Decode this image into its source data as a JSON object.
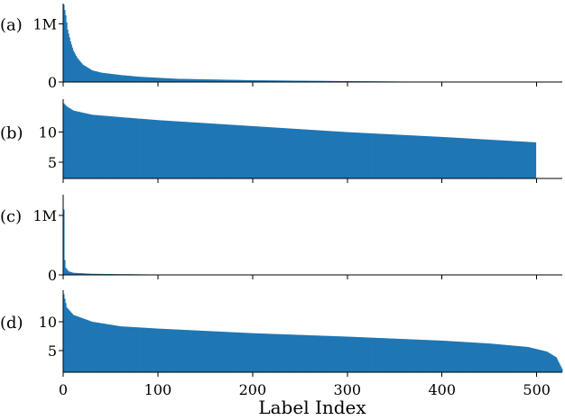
{
  "chart_data": {
    "type": "bar",
    "xlabel": "Label Index",
    "xticks": [
      0,
      100,
      200,
      300,
      400,
      500
    ],
    "xlim": [
      0,
      527
    ],
    "bar_color": "#1f77b4",
    "panels": [
      {
        "id": "a",
        "label": "(a)",
        "n_bars": 382,
        "ylim": [
          0,
          1350000
        ],
        "yticks": [
          {
            "value": 0,
            "label": "0"
          },
          {
            "value": 1000000,
            "label": "1M"
          }
        ],
        "values": [
          {
            "x": 0,
            "y": 1330000
          },
          {
            "x": 2,
            "y": 1150000
          },
          {
            "x": 4,
            "y": 900000
          },
          {
            "x": 7,
            "y": 700000
          },
          {
            "x": 10,
            "y": 540000
          },
          {
            "x": 14,
            "y": 420000
          },
          {
            "x": 20,
            "y": 300000
          },
          {
            "x": 30,
            "y": 200000
          },
          {
            "x": 40,
            "y": 160000
          },
          {
            "x": 60,
            "y": 120000
          },
          {
            "x": 80,
            "y": 90000
          },
          {
            "x": 120,
            "y": 55000
          },
          {
            "x": 200,
            "y": 30000
          },
          {
            "x": 300,
            "y": 15000
          },
          {
            "x": 382,
            "y": 5000
          }
        ]
      },
      {
        "id": "b",
        "label": "(b)",
        "n_bars": 499,
        "ylim": [
          2.3,
          15.5
        ],
        "yticks": [
          {
            "value": 5,
            "label": "5"
          },
          {
            "value": 10,
            "label": "10"
          }
        ],
        "values": [
          {
            "x": 0,
            "y": 14.8
          },
          {
            "x": 3,
            "y": 14.3
          },
          {
            "x": 10,
            "y": 13.6
          },
          {
            "x": 30,
            "y": 12.9
          },
          {
            "x": 60,
            "y": 12.5
          },
          {
            "x": 100,
            "y": 12.0
          },
          {
            "x": 200,
            "y": 11.0
          },
          {
            "x": 300,
            "y": 10.0
          },
          {
            "x": 400,
            "y": 9.2
          },
          {
            "x": 499,
            "y": 8.3
          }
        ]
      },
      {
        "id": "c",
        "label": "(c)",
        "n_bars": 88,
        "ylim": [
          0,
          1350000
        ],
        "yticks": [
          {
            "value": 0,
            "label": "0"
          },
          {
            "value": 1000000,
            "label": "1M"
          }
        ],
        "values": [
          {
            "x": 0,
            "y": 1100000
          },
          {
            "x": 1,
            "y": 250000
          },
          {
            "x": 2,
            "y": 120000
          },
          {
            "x": 5,
            "y": 60000
          },
          {
            "x": 10,
            "y": 35000
          },
          {
            "x": 30,
            "y": 18000
          },
          {
            "x": 60,
            "y": 12000
          },
          {
            "x": 88,
            "y": 8000
          }
        ]
      },
      {
        "id": "d",
        "label": "(d)",
        "n_bars": 527,
        "ylim": [
          1.2,
          15.5
        ],
        "yticks": [
          {
            "value": 5,
            "label": "5"
          },
          {
            "value": 10,
            "label": "10"
          }
        ],
        "values": [
          {
            "x": 0,
            "y": 14.8
          },
          {
            "x": 3,
            "y": 12.5
          },
          {
            "x": 10,
            "y": 11.2
          },
          {
            "x": 30,
            "y": 10.0
          },
          {
            "x": 60,
            "y": 9.2
          },
          {
            "x": 100,
            "y": 8.8
          },
          {
            "x": 200,
            "y": 8.0
          },
          {
            "x": 300,
            "y": 7.4
          },
          {
            "x": 400,
            "y": 6.7
          },
          {
            "x": 450,
            "y": 6.2
          },
          {
            "x": 490,
            "y": 5.6
          },
          {
            "x": 510,
            "y": 4.8
          },
          {
            "x": 520,
            "y": 3.8
          },
          {
            "x": 527,
            "y": 1.5
          }
        ]
      }
    ]
  }
}
